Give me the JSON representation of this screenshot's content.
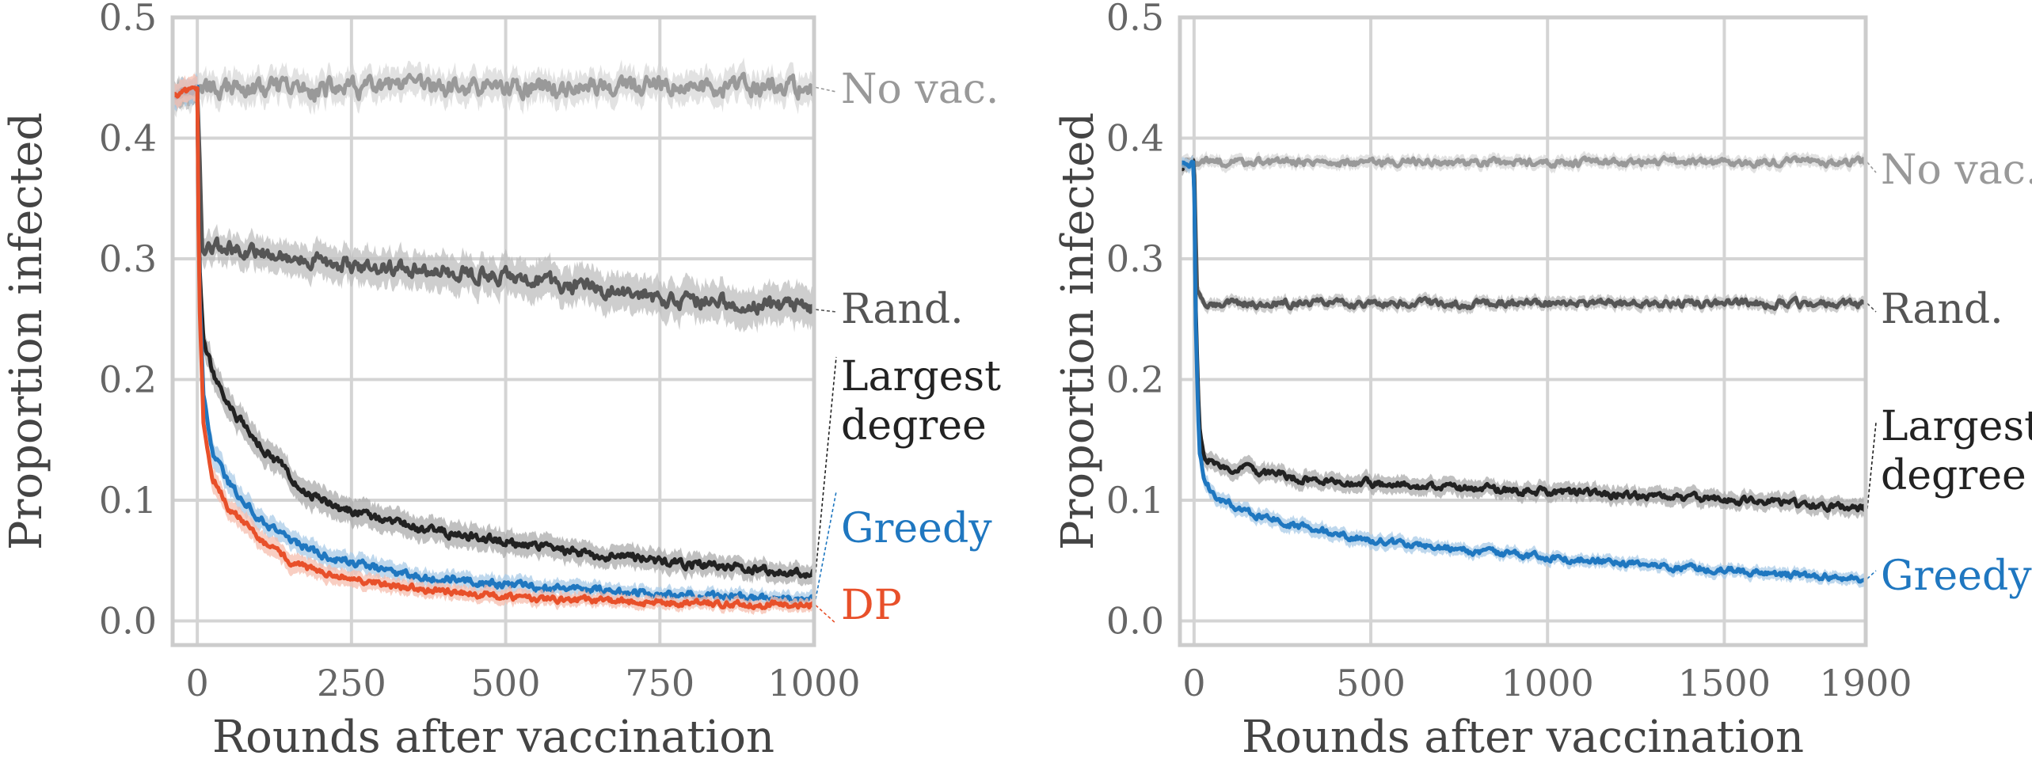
{
  "chart_data": [
    {
      "type": "line",
      "xlabel": "Rounds after vaccination",
      "ylabel": "Proportion infected",
      "xlim": [
        -40,
        1000
      ],
      "ylim": [
        -0.02,
        0.5
      ],
      "xticks": [
        0,
        250,
        500,
        750,
        1000
      ],
      "yticks": [
        0.0,
        0.1,
        0.2,
        0.3,
        0.4,
        0.5
      ],
      "xtick_labels": [
        "0",
        "250",
        "500",
        "750",
        "1000"
      ],
      "ytick_labels": [
        "0.0",
        "0.1",
        "0.2",
        "0.3",
        "0.4",
        "0.5"
      ],
      "grid": true,
      "series": [
        {
          "name": "No vac.",
          "label_lines": [
            "No vac."
          ],
          "color": "#999999",
          "x": [
            -40,
            0,
            500,
            1000
          ],
          "y": [
            0.438,
            0.44,
            0.442,
            0.442
          ],
          "band": [
            0.012,
            0.012,
            0.012,
            0.012
          ],
          "noise": 0.006
        },
        {
          "name": "Rand.",
          "label_lines": [
            "Rand."
          ],
          "color": "#555555",
          "x": [
            -40,
            0,
            8,
            50,
            250,
            500,
            750,
            1000
          ],
          "y": [
            0.436,
            0.44,
            0.31,
            0.308,
            0.295,
            0.285,
            0.268,
            0.258
          ],
          "band": [
            0.01,
            0.01,
            0.012,
            0.012,
            0.014,
            0.015,
            0.015,
            0.016
          ],
          "noise": 0.005
        },
        {
          "name": "Largest degree",
          "label_lines": [
            "Largest",
            "degree"
          ],
          "color": "#222222",
          "x": [
            -40,
            0,
            3,
            10,
            25,
            50,
            100,
            150,
            200,
            250,
            350,
            500,
            650,
            750,
            900,
            1000
          ],
          "y": [
            0.436,
            0.44,
            0.3,
            0.235,
            0.205,
            0.178,
            0.148,
            0.12,
            0.1,
            0.09,
            0.078,
            0.065,
            0.055,
            0.05,
            0.043,
            0.04
          ],
          "band": [
            0.01,
            0.01,
            0.012,
            0.012,
            0.012,
            0.012,
            0.011,
            0.011,
            0.011,
            0.011,
            0.01,
            0.01,
            0.009,
            0.009,
            0.008,
            0.008
          ],
          "noise": 0.003
        },
        {
          "name": "Greedy",
          "label_lines": [
            "Greedy"
          ],
          "color": "#1f77c0",
          "x": [
            -40,
            0,
            3,
            10,
            25,
            50,
            100,
            150,
            200,
            250,
            350,
            500,
            750,
            1000
          ],
          "y": [
            0.436,
            0.44,
            0.28,
            0.185,
            0.14,
            0.115,
            0.085,
            0.068,
            0.055,
            0.048,
            0.038,
            0.03,
            0.022,
            0.018
          ],
          "band": [
            0.01,
            0.01,
            0.012,
            0.01,
            0.01,
            0.01,
            0.009,
            0.008,
            0.008,
            0.008,
            0.007,
            0.007,
            0.006,
            0.006
          ],
          "noise": 0.0025
        },
        {
          "name": "DP",
          "label_lines": [
            "DP"
          ],
          "color": "#e8502a",
          "x": [
            -40,
            0,
            3,
            10,
            25,
            50,
            100,
            150,
            200,
            250,
            350,
            500,
            750,
            1000
          ],
          "y": [
            0.436,
            0.44,
            0.27,
            0.165,
            0.12,
            0.095,
            0.068,
            0.05,
            0.04,
            0.035,
            0.027,
            0.02,
            0.015,
            0.013
          ],
          "band": [
            0.01,
            0.01,
            0.01,
            0.01,
            0.01,
            0.009,
            0.008,
            0.008,
            0.007,
            0.007,
            0.006,
            0.006,
            0.005,
            0.005
          ],
          "noise": 0.0022
        }
      ]
    },
    {
      "type": "line",
      "xlabel": "Rounds after vaccination",
      "ylabel": "Proportion infected",
      "xlim": [
        -40,
        1900
      ],
      "ylim": [
        -0.02,
        0.5
      ],
      "xticks": [
        0,
        500,
        1000,
        1500,
        1900
      ],
      "yticks": [
        0.0,
        0.1,
        0.2,
        0.3,
        0.4,
        0.5
      ],
      "xtick_labels": [
        "0",
        "500",
        "1000",
        "1500",
        "1900"
      ],
      "ytick_labels": [
        "0.0",
        "0.1",
        "0.2",
        "0.3",
        "0.4",
        "0.5"
      ],
      "grid": true,
      "series": [
        {
          "name": "No vac.",
          "label_lines": [
            "No vac."
          ],
          "color": "#999999",
          "x": [
            -40,
            0,
            1900
          ],
          "y": [
            0.38,
            0.38,
            0.38
          ],
          "band": [
            0.005,
            0.005,
            0.005
          ],
          "noise": 0.0025
        },
        {
          "name": "Rand.",
          "label_lines": [
            "Rand."
          ],
          "color": "#555555",
          "x": [
            -40,
            0,
            8,
            30,
            1900
          ],
          "y": [
            0.378,
            0.38,
            0.27,
            0.263,
            0.263
          ],
          "band": [
            0.005,
            0.005,
            0.005,
            0.005,
            0.005
          ],
          "noise": 0.0025
        },
        {
          "name": "Largest degree",
          "label_lines": [
            "Largest",
            "degree"
          ],
          "color": "#222222",
          "x": [
            -40,
            0,
            5,
            15,
            30,
            100,
            300,
            600,
            1000,
            1400,
            1700,
            1900
          ],
          "y": [
            0.378,
            0.38,
            0.25,
            0.16,
            0.135,
            0.128,
            0.118,
            0.112,
            0.107,
            0.102,
            0.097,
            0.093
          ],
          "band": [
            0.005,
            0.005,
            0.008,
            0.008,
            0.007,
            0.007,
            0.007,
            0.007,
            0.007,
            0.007,
            0.007,
            0.007
          ],
          "noise": 0.0025
        },
        {
          "name": "Greedy",
          "label_lines": [
            "Greedy"
          ],
          "color": "#1f77c0",
          "x": [
            -40,
            0,
            5,
            15,
            30,
            60,
            150,
            300,
            500,
            800,
            1100,
            1400,
            1700,
            1900
          ],
          "y": [
            0.378,
            0.38,
            0.24,
            0.14,
            0.115,
            0.103,
            0.09,
            0.078,
            0.067,
            0.057,
            0.05,
            0.044,
            0.038,
            0.035
          ],
          "band": [
            0.005,
            0.005,
            0.008,
            0.007,
            0.007,
            0.006,
            0.006,
            0.006,
            0.006,
            0.005,
            0.005,
            0.005,
            0.005,
            0.005
          ],
          "noise": 0.0022
        }
      ]
    }
  ]
}
